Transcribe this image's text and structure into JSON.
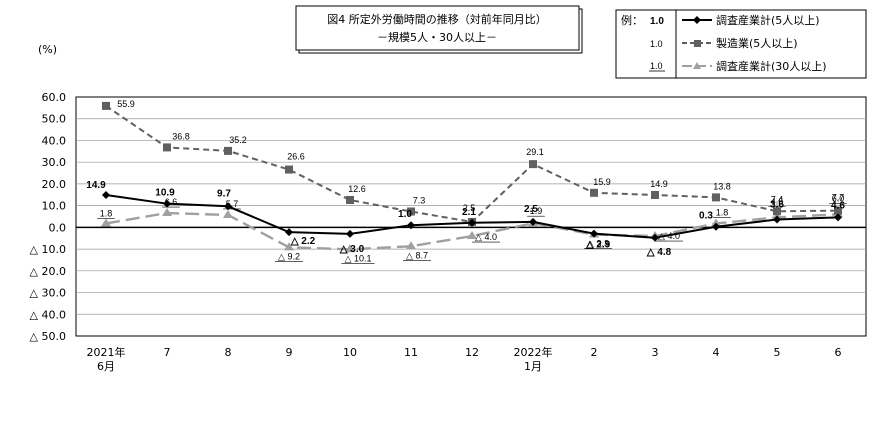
{
  "chart_data": {
    "type": "line",
    "title": "図4 所定外労働時間の推移（対前年同月比）",
    "subtitle": "－規模5人・30人以上－",
    "ylabel": "(%)",
    "ylim": [
      -50,
      60
    ],
    "yticks": [
      60,
      50,
      40,
      30,
      20,
      10,
      0,
      -10,
      -20,
      -30,
      -40,
      -50
    ],
    "ytick_labels": [
      "60.0",
      "50.0",
      "40.0",
      "30.0",
      "20.0",
      "10.0",
      "0.0",
      "△ 10.0",
      "△ 20.0",
      "△ 30.0",
      "△ 40.0",
      "△ 50.0"
    ],
    "categories": [
      [
        "2021年",
        "6月"
      ],
      [
        "7"
      ],
      [
        "8"
      ],
      [
        "9"
      ],
      [
        "10"
      ],
      [
        "11"
      ],
      [
        "12"
      ],
      [
        "2022年",
        "1月"
      ],
      [
        "2"
      ],
      [
        "3"
      ],
      [
        "4"
      ],
      [
        "5"
      ],
      [
        "6"
      ]
    ],
    "grid": true,
    "legend_position": "top-right",
    "legend_example": {
      "title": "例：",
      "labels": [
        "1.0",
        "1.0",
        "1.0"
      ]
    },
    "series": [
      {
        "name": "調査産業計(5人以上)",
        "color": "#000000",
        "values": [
          14.9,
          10.9,
          9.7,
          -2.2,
          -3.0,
          1.0,
          2.1,
          2.5,
          -2.9,
          -4.8,
          0.3,
          3.6,
          4.6
        ],
        "labels": [
          "14.9",
          "10.9",
          "9.7",
          "△ 2.2",
          "△ 3.0",
          "1.0",
          "2.1",
          "2.5",
          "△ 2.9",
          "△ 4.8",
          "0.3",
          "3.6",
          "4.6"
        ]
      },
      {
        "name": "製造業(5人以上)",
        "color": "#606060",
        "values": [
          55.9,
          36.8,
          35.2,
          26.6,
          12.6,
          7.3,
          2.5,
          29.1,
          15.9,
          14.9,
          13.8,
          7.4,
          7.7
        ],
        "labels": [
          "55.9",
          "36.8",
          "35.2",
          "26.6",
          "12.6",
          "7.3",
          "2.5",
          "29.1",
          "15.9",
          "14.9",
          "13.8",
          "7.4",
          "7.7"
        ]
      },
      {
        "name": "調査産業計(30人以上)",
        "color": "#a0a0a0",
        "values": [
          1.8,
          6.6,
          5.7,
          -9.2,
          -10.1,
          -8.7,
          -4.0,
          1.9,
          -3.3,
          -4.0,
          1.8,
          4.6,
          6.0
        ],
        "labels": [
          "1.8",
          "6.6",
          "5.7",
          "△ 9.2",
          "△ 10.1",
          "△ 8.7",
          "△ 4.0",
          "1.9",
          "△ 3.3",
          "△ 4.0",
          "1.8",
          "4.6",
          "6.0"
        ]
      }
    ]
  }
}
